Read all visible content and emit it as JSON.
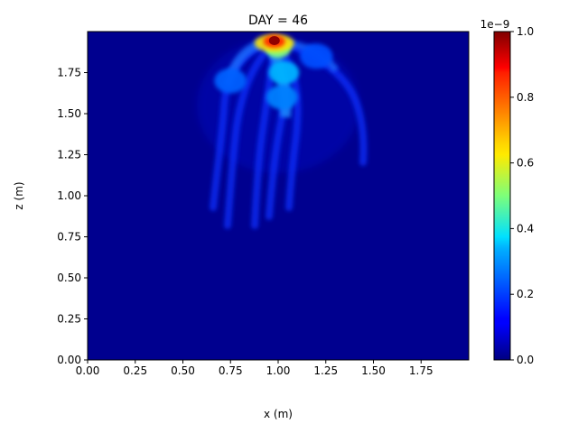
{
  "chart_data": {
    "type": "heatmap",
    "title": "DAY = 46",
    "xlabel": "x (m)",
    "ylabel": "z (m)",
    "xlim": [
      0,
      2.0
    ],
    "ylim": [
      0,
      2.0
    ],
    "xticks": [
      "0.00",
      "0.25",
      "0.50",
      "0.75",
      "1.00",
      "1.25",
      "1.50",
      "1.75"
    ],
    "yticks": [
      "0.00",
      "0.25",
      "0.50",
      "0.75",
      "1.00",
      "1.25",
      "1.50",
      "1.75"
    ],
    "colormap": "jet",
    "colorbar": {
      "range": [
        0,
        1.0
      ],
      "ticks": [
        "0.0",
        "0.2",
        "0.4",
        "0.6",
        "0.8",
        "1.0"
      ],
      "offset_label": "1e−9"
    },
    "features": [
      {
        "x": 0.98,
        "z": 1.94,
        "value": 1.0
      },
      {
        "x": 1.0,
        "z": 1.9,
        "value": 0.5
      },
      {
        "x": 1.03,
        "z": 1.75,
        "value": 0.3
      },
      {
        "x": 1.02,
        "z": 1.6,
        "value": 0.25
      },
      {
        "x": 0.75,
        "z": 1.7,
        "value": 0.22
      },
      {
        "x": 1.2,
        "z": 1.85,
        "value": 0.2
      }
    ]
  }
}
